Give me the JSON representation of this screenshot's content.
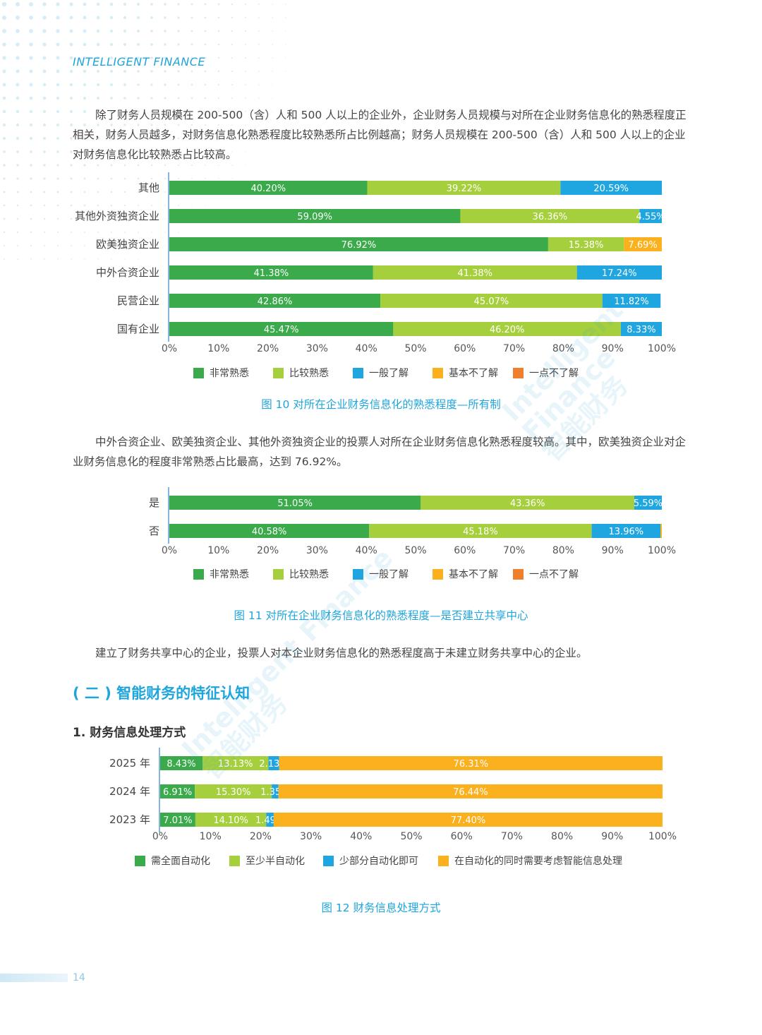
{
  "header": {
    "brand": "INTELLIGENT FINANCE"
  },
  "paragraphs": {
    "p1": "除了财务人员规模在 200-500（含）人和 500 人以上的企业外，企业财务人员规模与对所在企业财务信息化的熟悉程度正相关，财务人员越多，对财务信息化熟悉程度比较熟悉所占比例越高；财务人员规模在 200-500（含）人和 500 人以上的企业对财务信息化比较熟悉占比较高。",
    "p2": "中外合资企业、欧美独资企业、其他外资独资企业的投票人对所在企业财务信息化熟悉程度较高。其中，欧美独资企业对企业财务信息化的程度非常熟悉占比最高，达到 76.92%。",
    "p3": "建立了财务共享中心的企业，投票人对本企业财务信息化的熟悉程度高于未建立财务共享中心的企业。"
  },
  "captions": {
    "fig10": "图 10  对所在企业财务信息化的熟悉程度—所有制",
    "fig11": "图 11  对所在企业财务信息化的熟悉程度—是否建立共享中心",
    "fig12": "图 12  财务信息处理方式"
  },
  "section_title": "( 二 ) 智能财务的特征认知",
  "sub_title": "1. 财务信息处理方式",
  "page_number": "14",
  "watermark": {
    "en": "Intelligent Finance",
    "cn": "智能财务"
  },
  "chart_data": [
    {
      "type": "bar",
      "orientation": "horizontal",
      "stacked": true,
      "categories": [
        "其他",
        "其他外资独资企业",
        "欧美独资企业",
        "中外合资企业",
        "民营企业",
        "国有企业"
      ],
      "series": [
        {
          "name": "非常熟悉",
          "color": "#3aaa4a",
          "values": [
            40.2,
            59.09,
            76.92,
            41.38,
            42.86,
            45.47
          ],
          "labels": [
            "40.20%",
            "59.09%",
            "76.92%",
            "41.38%",
            "42.86%",
            "45.47%"
          ]
        },
        {
          "name": "比较熟悉",
          "color": "#a6cf3d",
          "values": [
            39.22,
            36.36,
            15.38,
            41.38,
            45.07,
            46.2
          ],
          "labels": [
            "39.22%",
            "36.36%",
            "15.38%",
            "41.38%",
            "45.07%",
            "46.20%"
          ]
        },
        {
          "name": "一般了解",
          "color": "#1fa6e0",
          "values": [
            20.59,
            4.55,
            0,
            17.24,
            11.82,
            8.33
          ],
          "labels": [
            "20.59%",
            "4.55%",
            "",
            "17.24%",
            "11.82%",
            "8.33%"
          ]
        },
        {
          "name": "基本不了解",
          "color": "#fbb01d",
          "values": [
            0,
            0,
            7.69,
            0,
            0,
            0
          ],
          "labels": [
            "",
            "",
            "7.69%",
            "",
            "",
            ""
          ]
        },
        {
          "name": "一点不了解",
          "color": "#f07f2b",
          "values": [
            0,
            0,
            0,
            0,
            0,
            0
          ],
          "labels": [
            "",
            "",
            "",
            "",
            "",
            ""
          ]
        }
      ],
      "xticks": [
        "0%",
        "10%",
        "20%",
        "30%",
        "40%",
        "50%",
        "60%",
        "70%",
        "80%",
        "90%",
        "100%"
      ],
      "xlim": [
        0,
        100
      ],
      "legend_position": "bottom"
    },
    {
      "type": "bar",
      "orientation": "horizontal",
      "stacked": true,
      "categories": [
        "是",
        "否"
      ],
      "series": [
        {
          "name": "非常熟悉",
          "color": "#3aaa4a",
          "values": [
            51.05,
            40.58
          ],
          "labels": [
            "51.05%",
            "40.58%"
          ]
        },
        {
          "name": "比较熟悉",
          "color": "#a6cf3d",
          "values": [
            43.36,
            45.18
          ],
          "labels": [
            "43.36%",
            "45.18%"
          ]
        },
        {
          "name": "一般了解",
          "color": "#1fa6e0",
          "values": [
            5.59,
            13.96
          ],
          "labels": [
            "5.59%",
            "13.96%"
          ]
        },
        {
          "name": "基本不了解",
          "color": "#fbb01d",
          "values": [
            0,
            0.28
          ],
          "labels": [
            "",
            ""
          ]
        },
        {
          "name": "一点不了解",
          "color": "#f07f2b",
          "values": [
            0,
            0
          ],
          "labels": [
            "",
            ""
          ]
        }
      ],
      "xticks": [
        "0%",
        "10%",
        "20%",
        "30%",
        "40%",
        "50%",
        "60%",
        "70%",
        "80%",
        "90%",
        "100%"
      ],
      "xlim": [
        0,
        100
      ],
      "legend_position": "bottom"
    },
    {
      "type": "bar",
      "orientation": "horizontal",
      "stacked": true,
      "categories": [
        "2025 年",
        "2024 年",
        "2023 年"
      ],
      "series": [
        {
          "name": "需全面自动化",
          "color": "#3aaa4a",
          "values": [
            8.43,
            6.91,
            7.01
          ],
          "labels": [
            "8.43%",
            "6.91%",
            "7.01%"
          ]
        },
        {
          "name": "至少半自动化",
          "color": "#a6cf3d",
          "values": [
            13.13,
            15.3,
            14.1
          ],
          "labels": [
            "13.13%",
            "15.30%",
            "14.10%"
          ]
        },
        {
          "name": "少部分自动化即可",
          "color": "#1fa6e0",
          "values": [
            2.13,
            1.35,
            1.49
          ],
          "labels": [
            "2.13%",
            "1.35%",
            "1.49%"
          ]
        },
        {
          "name": "在自动化的同时需要考虑智能信息处理",
          "color": "#fbb01d",
          "values": [
            76.31,
            76.44,
            77.4
          ],
          "labels": [
            "76.31%",
            "76.44%",
            "77.40%"
          ]
        }
      ],
      "xticks": [
        "0%",
        "10%",
        "20%",
        "30%",
        "40%",
        "50%",
        "60%",
        "70%",
        "80%",
        "90%",
        "100%"
      ],
      "xlim": [
        0,
        100
      ],
      "legend_position": "bottom"
    }
  ]
}
